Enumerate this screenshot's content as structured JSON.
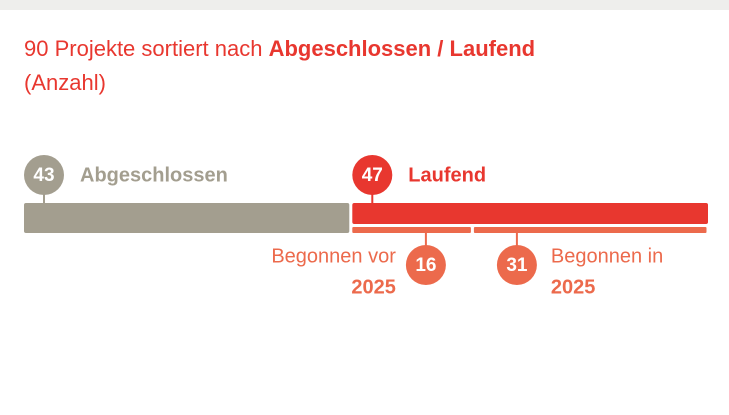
{
  "chart_data": {
    "type": "stacked-bar",
    "title": {
      "lead": "90 Projekte sortiert nach ",
      "bold": "Abgeschlossen / Laufend",
      "tail": "(Anzahl)"
    },
    "xlim": [
      0,
      90
    ],
    "series": [
      {
        "name": "Abgeschlossen",
        "color": "#a39e8f",
        "values": [
          43
        ]
      },
      {
        "name": "Laufend",
        "color": "#e8372f",
        "values": [
          47
        ]
      }
    ],
    "sub_series": [
      {
        "label": [
          "Begonnen vor",
          "2025"
        ],
        "color": "#ec6a4c",
        "values": [
          16
        ]
      },
      {
        "label": [
          "Begonnen in",
          "2025"
        ],
        "color": "#ec6a4c",
        "values": [
          31
        ]
      }
    ]
  }
}
